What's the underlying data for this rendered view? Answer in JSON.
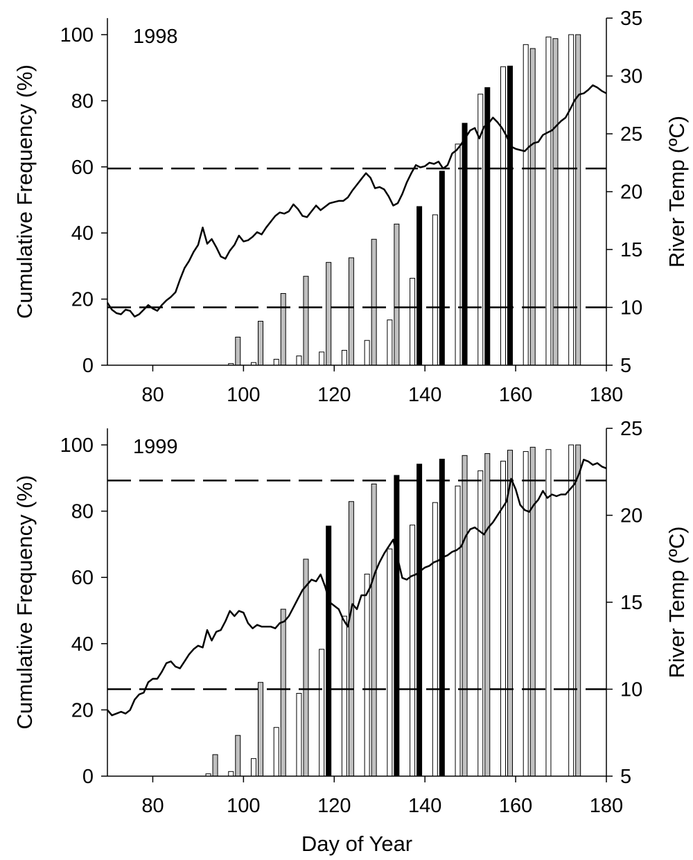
{
  "chart_data": [
    {
      "type": "bar",
      "year_label": "1998",
      "xlabel": "",
      "ylabel": "Cumulative Frequency (%)",
      "y2label": "River Temp (ºC)",
      "xlim": [
        70,
        180
      ],
      "ylim": [
        0,
        105
      ],
      "y2lim": [
        5,
        35
      ],
      "xticks": [
        80,
        100,
        120,
        140,
        160,
        180
      ],
      "yticks": [
        0,
        20,
        40,
        60,
        80,
        100
      ],
      "y2ticks": [
        5,
        10,
        15,
        20,
        25,
        30,
        35
      ],
      "reference_lines_temp": [
        10,
        22
      ],
      "series_colors": {
        "white": "#ffffff",
        "black": "#000000",
        "gray": "#c0c0c0"
      },
      "bars": [
        {
          "day": 98,
          "white": 0.5,
          "black": null,
          "gray": 8.5
        },
        {
          "day": 103,
          "white": 0.8,
          "black": null,
          "gray": 13.3
        },
        {
          "day": 108,
          "white": 1.8,
          "black": null,
          "gray": 21.7
        },
        {
          "day": 113,
          "white": 2.8,
          "black": null,
          "gray": 26.9
        },
        {
          "day": 118,
          "white": 4.0,
          "black": null,
          "gray": 31.1
        },
        {
          "day": 123,
          "white": 4.5,
          "black": null,
          "gray": 32.5
        },
        {
          "day": 128,
          "white": 7.5,
          "black": null,
          "gray": 38.1
        },
        {
          "day": 133,
          "white": 13.7,
          "black": null,
          "gray": 42.7
        },
        {
          "day": 138,
          "white": 26.3,
          "black": 48.0,
          "gray": null
        },
        {
          "day": 143,
          "white": 45.5,
          "black": 58.7,
          "gray": null
        },
        {
          "day": 148,
          "white": 66.9,
          "black": 73.2,
          "gray": null
        },
        {
          "day": 153,
          "white": 82.0,
          "black": 84.0,
          "gray": null
        },
        {
          "day": 158,
          "white": 90.3,
          "black": 90.5,
          "gray": null
        },
        {
          "day": 163,
          "white": 97.0,
          "black": null,
          "gray": 95.8
        },
        {
          "day": 168,
          "white": 99.3,
          "black": null,
          "gray": 98.8
        },
        {
          "day": 173,
          "white": 100.0,
          "black": null,
          "gray": 100.0
        }
      ],
      "temperature": {
        "x": [
          70,
          71,
          72,
          73,
          74,
          75,
          76,
          77,
          78,
          79,
          80,
          81,
          82,
          83,
          84,
          85,
          86,
          87,
          88,
          89,
          90,
          91,
          92,
          93,
          94,
          95,
          96,
          97,
          98,
          99,
          100,
          101,
          102,
          103,
          104,
          105,
          106,
          107,
          108,
          109,
          110,
          111,
          112,
          113,
          114,
          115,
          116,
          117,
          118,
          119,
          120,
          121,
          122,
          123,
          124,
          125,
          126,
          127,
          128,
          129,
          130,
          131,
          132,
          133,
          134,
          135,
          136,
          137,
          138,
          139,
          140,
          141,
          142,
          143,
          144,
          145,
          146,
          147,
          148,
          149,
          150,
          151,
          152,
          153,
          154,
          155,
          156,
          157,
          158,
          159,
          160,
          161,
          162,
          163,
          164,
          165,
          166,
          167,
          168,
          169,
          170,
          171,
          172,
          173,
          174,
          175,
          176,
          177,
          178,
          179,
          180
        ],
        "y": [
          10.4,
          9.8,
          9.5,
          9.4,
          9.8,
          9.7,
          9.2,
          9.4,
          9.8,
          10.2,
          9.9,
          9.7,
          10.2,
          10.6,
          10.9,
          11.3,
          12.4,
          13.4,
          14.0,
          14.8,
          15.4,
          16.9,
          15.5,
          15.9,
          15.2,
          14.4,
          14.2,
          14.9,
          15.4,
          16.2,
          15.7,
          15.8,
          16.1,
          16.5,
          16.3,
          16.9,
          17.4,
          17.9,
          18.2,
          18.1,
          18.3,
          18.9,
          18.5,
          17.9,
          17.8,
          18.3,
          18.8,
          18.4,
          18.7,
          19.0,
          19.1,
          19.2,
          19.2,
          19.5,
          20.1,
          20.6,
          21.1,
          21.6,
          21.2,
          20.3,
          20.4,
          20.2,
          19.6,
          18.8,
          19.0,
          19.8,
          20.8,
          21.6,
          22.3,
          22.1,
          22.2,
          22.5,
          22.4,
          22.6,
          22.0,
          22.3,
          23.3,
          23.6,
          24.1,
          24.7,
          25.3,
          25.5,
          24.6,
          25.6,
          25.9,
          26.4,
          26.0,
          25.5,
          24.8,
          23.9,
          23.7,
          23.6,
          23.5,
          23.9,
          24.2,
          24.3,
          24.9,
          25.1,
          25.3,
          25.7,
          26.1,
          26.4,
          27.1,
          27.9,
          28.4,
          28.5,
          28.8,
          29.2,
          29.0,
          28.7,
          28.5
        ]
      }
    },
    {
      "type": "bar",
      "year_label": "1999",
      "xlabel": "Day of Year",
      "ylabel": "Cumulative Frequency (%)",
      "y2label": "River Temp (ºC)",
      "xlim": [
        70,
        180
      ],
      "ylim": [
        0,
        105
      ],
      "y2lim": [
        5,
        25
      ],
      "xticks": [
        80,
        100,
        120,
        140,
        160,
        180
      ],
      "yticks": [
        0,
        20,
        40,
        60,
        80,
        100
      ],
      "y2ticks": [
        5,
        10,
        15,
        20,
        25
      ],
      "reference_lines_temp": [
        10,
        22
      ],
      "series_colors": {
        "white": "#ffffff",
        "black": "#000000",
        "gray": "#c0c0c0"
      },
      "bars": [
        {
          "day": 93,
          "white": 0.7,
          "black": null,
          "gray": 6.5
        },
        {
          "day": 98,
          "white": 1.4,
          "black": null,
          "gray": 12.3
        },
        {
          "day": 103,
          "white": 5.3,
          "black": null,
          "gray": 28.3
        },
        {
          "day": 108,
          "white": 14.7,
          "black": null,
          "gray": 50.4
        },
        {
          "day": 113,
          "white": 25.0,
          "black": null,
          "gray": 65.5
        },
        {
          "day": 118,
          "white": 38.3,
          "black": 75.5,
          "gray": null
        },
        {
          "day": 123,
          "white": 48.3,
          "black": null,
          "gray": 82.9
        },
        {
          "day": 128,
          "white": 61.0,
          "black": null,
          "gray": 88.2
        },
        {
          "day": 133,
          "white": 68.6,
          "black": 90.8,
          "gray": null
        },
        {
          "day": 138,
          "white": 75.8,
          "black": 94.2,
          "gray": null
        },
        {
          "day": 143,
          "white": 82.6,
          "black": 95.7,
          "gray": null
        },
        {
          "day": 148,
          "white": 87.6,
          "black": null,
          "gray": 96.8
        },
        {
          "day": 153,
          "white": 92.2,
          "black": null,
          "gray": 97.4
        },
        {
          "day": 158,
          "white": 95.1,
          "black": null,
          "gray": 98.4
        },
        {
          "day": 163,
          "white": 98.0,
          "black": null,
          "gray": 99.3
        },
        {
          "day": 168,
          "white": 98.6,
          "black": null,
          "gray": null
        },
        {
          "day": 173,
          "white": 100.0,
          "black": null,
          "gray": 100.0
        }
      ],
      "temperature": {
        "x": [
          70,
          71,
          72,
          73,
          74,
          75,
          76,
          77,
          78,
          79,
          80,
          81,
          82,
          83,
          84,
          85,
          86,
          87,
          88,
          89,
          90,
          91,
          92,
          93,
          94,
          95,
          96,
          97,
          98,
          99,
          100,
          101,
          102,
          103,
          104,
          105,
          106,
          107,
          108,
          109,
          110,
          111,
          112,
          113,
          114,
          115,
          116,
          117,
          118,
          119,
          120,
          121,
          122,
          123,
          124,
          125,
          126,
          127,
          128,
          129,
          130,
          131,
          132,
          133,
          134,
          135,
          136,
          137,
          138,
          139,
          140,
          141,
          142,
          143,
          144,
          145,
          146,
          147,
          148,
          149,
          150,
          151,
          152,
          153,
          154,
          155,
          156,
          157,
          158,
          159,
          160,
          161,
          162,
          163,
          164,
          165,
          166,
          167,
          168,
          169,
          170,
          171,
          172,
          173,
          174,
          175,
          176,
          177,
          178,
          179,
          180
        ],
        "y": [
          8.8,
          8.5,
          8.6,
          8.7,
          8.6,
          8.8,
          9.4,
          9.7,
          9.8,
          10.4,
          10.6,
          10.6,
          11.0,
          11.5,
          11.6,
          11.3,
          11.2,
          11.6,
          12.0,
          12.3,
          12.5,
          12.4,
          13.4,
          12.8,
          13.3,
          13.4,
          13.9,
          14.5,
          14.2,
          14.5,
          14.4,
          13.8,
          13.5,
          13.7,
          13.6,
          13.6,
          13.6,
          13.5,
          13.8,
          13.9,
          14.2,
          14.7,
          15.2,
          15.7,
          16.0,
          16.3,
          16.2,
          16.6,
          15.9,
          15.0,
          14.8,
          14.6,
          14.0,
          13.6,
          14.9,
          14.6,
          15.4,
          15.4,
          15.9,
          16.7,
          17.3,
          17.8,
          18.2,
          18.6,
          17.5,
          16.4,
          16.3,
          16.5,
          16.6,
          16.8,
          17.0,
          17.1,
          17.3,
          17.4,
          17.6,
          17.7,
          17.9,
          18.0,
          18.2,
          18.8,
          19.2,
          19.3,
          19.1,
          18.9,
          19.3,
          19.6,
          20.0,
          20.4,
          20.8,
          22.1,
          21.5,
          20.6,
          20.3,
          20.2,
          20.6,
          20.9,
          21.4,
          21.0,
          21.2,
          21.1,
          21.2,
          21.2,
          21.5,
          21.8,
          22.4,
          23.2,
          23.1,
          22.9,
          23.0,
          22.8,
          22.7
        ]
      }
    }
  ]
}
